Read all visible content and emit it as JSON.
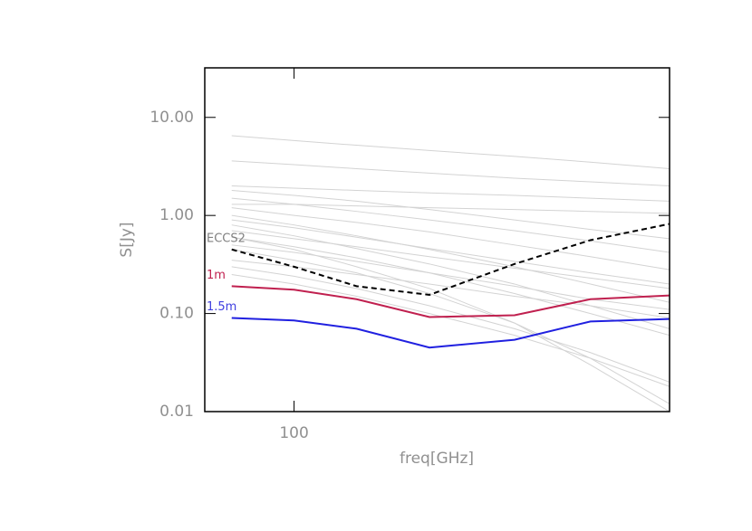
{
  "chart_data": {
    "type": "line",
    "x_label": "freq[GHz]",
    "y_label": "S[Jy]",
    "x": [
      70,
      100,
      143,
      217,
      353,
      545,
      857
    ],
    "xlim": [
      60,
      857
    ],
    "ylim": [
      0.01,
      32
    ],
    "xticks": [
      100
    ],
    "yticks": [
      {
        "value": 0.01,
        "label": "0.01"
      },
      {
        "value": 0.1,
        "label": "0.10"
      },
      {
        "value": 1,
        "label": "1.00"
      },
      {
        "value": 10,
        "label": "10.00"
      }
    ],
    "log_x": true,
    "log_y": true,
    "background_color": "#d3d3d3",
    "background_series": [
      {
        "values": [
          6.5,
          5.8,
          5.2,
          4.6,
          4.0,
          3.5,
          3.0
        ]
      },
      {
        "values": [
          3.6,
          3.3,
          3.0,
          2.7,
          2.4,
          2.2,
          2.0
        ]
      },
      {
        "values": [
          2.0,
          1.9,
          1.8,
          1.7,
          1.6,
          1.5,
          1.4
        ]
      },
      {
        "values": [
          1.8,
          1.6,
          1.4,
          1.15,
          0.9,
          0.72,
          0.58
        ]
      },
      {
        "values": [
          1.5,
          1.3,
          1.1,
          0.9,
          0.7,
          0.55,
          0.42
        ]
      },
      {
        "values": [
          1.2,
          1.0,
          0.85,
          0.68,
          0.5,
          0.38,
          0.28
        ]
      },
      {
        "values": [
          1.0,
          0.8,
          0.62,
          0.45,
          0.3,
          0.2,
          0.13
        ]
      },
      {
        "values": [
          0.9,
          0.75,
          0.6,
          0.46,
          0.34,
          0.26,
          0.2
        ]
      },
      {
        "values": [
          0.8,
          0.62,
          0.46,
          0.32,
          0.2,
          0.12,
          0.07
        ]
      },
      {
        "values": [
          0.7,
          0.58,
          0.48,
          0.38,
          0.29,
          0.23,
          0.18
        ]
      },
      {
        "values": [
          0.6,
          0.48,
          0.37,
          0.26,
          0.16,
          0.1,
          0.06
        ]
      },
      {
        "values": [
          0.5,
          0.42,
          0.34,
          0.26,
          0.19,
          0.14,
          0.11
        ]
      },
      {
        "values": [
          0.45,
          0.35,
          0.26,
          0.16,
          0.08,
          0.035,
          0.012
        ]
      },
      {
        "values": [
          0.35,
          0.3,
          0.25,
          0.2,
          0.15,
          0.12,
          0.09
        ]
      },
      {
        "values": [
          0.3,
          0.24,
          0.18,
          0.12,
          0.07,
          0.04,
          0.02
        ]
      },
      {
        "values": [
          0.25,
          0.2,
          0.15,
          0.1,
          0.06,
          0.035,
          0.018
        ]
      },
      {
        "values": [
          1.3,
          1.3,
          1.25,
          1.2,
          1.15,
          1.1,
          1.05
        ]
      },
      {
        "values": [
          0.6,
          0.45,
          0.3,
          0.18,
          0.08,
          0.03,
          0.01
        ]
      }
    ],
    "series": [
      {
        "name": "ECCS2",
        "color": "#000000",
        "dashed": true,
        "label_color": "#808080",
        "values": [
          0.45,
          0.3,
          0.19,
          0.155,
          0.32,
          0.56,
          0.82
        ]
      },
      {
        "name": "1m",
        "color": "#c0204f",
        "dashed": false,
        "label_color": "#c0204f",
        "values": [
          0.19,
          0.175,
          0.14,
          0.092,
          0.096,
          0.14,
          0.153
        ]
      },
      {
        "name": "1.5m",
        "color": "#2020e0",
        "dashed": false,
        "label_color": "#4040e0",
        "values": [
          0.09,
          0.085,
          0.07,
          0.045,
          0.054,
          0.083,
          0.088
        ]
      }
    ]
  }
}
